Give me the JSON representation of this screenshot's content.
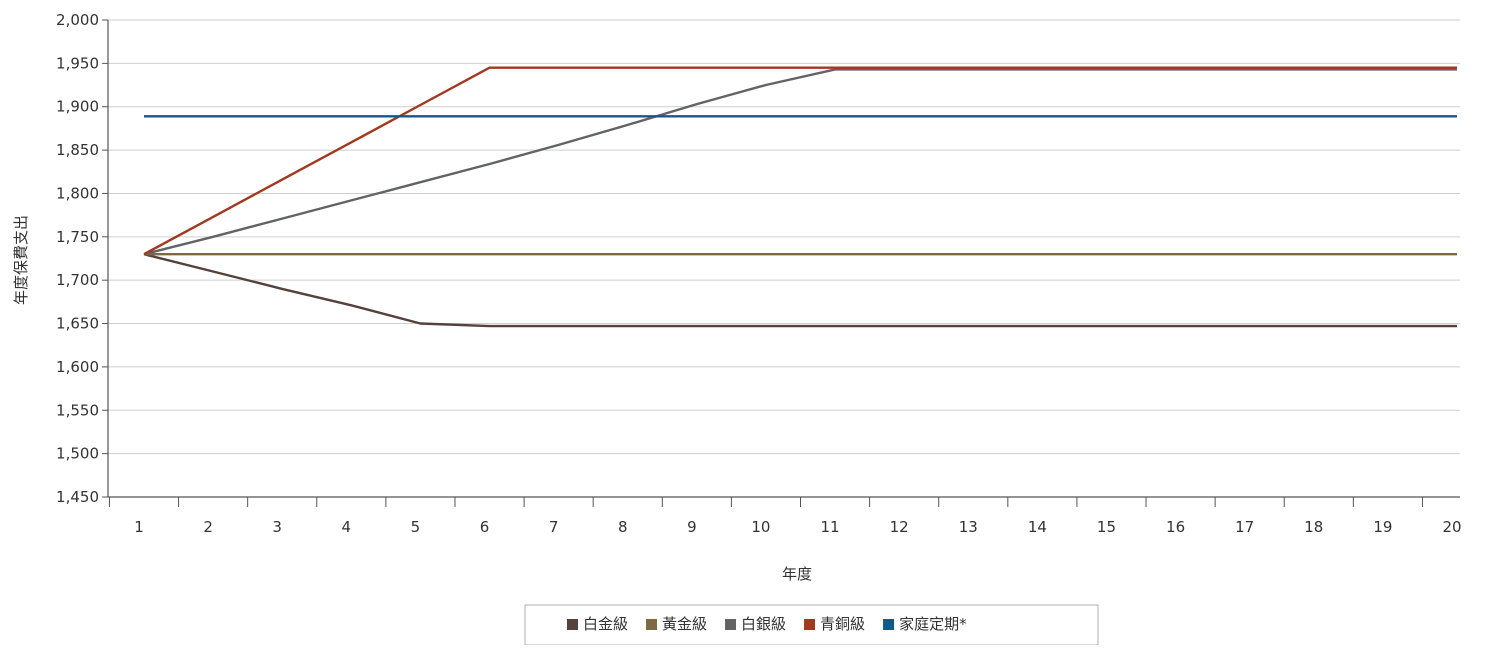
{
  "chart_data": {
    "type": "line",
    "title": "",
    "xlabel": "年度",
    "ylabel": "年度保費支出",
    "categories": [
      "1",
      "2",
      "3",
      "4",
      "5",
      "6",
      "7",
      "8",
      "9",
      "10",
      "11",
      "12",
      "13",
      "14",
      "15",
      "16",
      "17",
      "18",
      "19",
      "20"
    ],
    "ylim": [
      1450,
      2000
    ],
    "y_ticks": [
      1450,
      1500,
      1550,
      1600,
      1650,
      1700,
      1750,
      1800,
      1850,
      1900,
      1950,
      2000
    ],
    "y_tick_labels": [
      "1,450",
      "1,500",
      "1,550",
      "1,600",
      "1,650",
      "1,700",
      "1,750",
      "1,800",
      "1,850",
      "1,900",
      "1,950",
      "2,000"
    ],
    "grid": "horizontal",
    "legend_position": "bottom",
    "series": [
      {
        "name": "白金級",
        "color": "#55423c",
        "values": [
          1730,
          1710,
          1690,
          1671,
          1650,
          1647,
          1647,
          1647,
          1647,
          1647,
          1647,
          1647,
          1647,
          1647,
          1647,
          1647,
          1647,
          1647,
          1647,
          1647
        ]
      },
      {
        "name": "黃金級",
        "color": "#7d6a45",
        "values": [
          1730,
          1730,
          1730,
          1730,
          1730,
          1730,
          1730,
          1730,
          1730,
          1730,
          1730,
          1730,
          1730,
          1730,
          1730,
          1730,
          1730,
          1730,
          1730,
          1730
        ]
      },
      {
        "name": "白銀級",
        "color": "#626366",
        "values": [
          1730,
          1750,
          1771,
          1792,
          1813,
          1834,
          1856,
          1879,
          1903,
          1925,
          1943,
          1943,
          1943,
          1943,
          1943,
          1943,
          1943,
          1943,
          1943,
          1943
        ]
      },
      {
        "name": "青銅級",
        "color": "#a0391f",
        "values": [
          1730,
          1773,
          1816,
          1859,
          1902,
          1945,
          1945,
          1945,
          1945,
          1945,
          1945,
          1945,
          1945,
          1945,
          1945,
          1945,
          1945,
          1945,
          1945,
          1945
        ]
      },
      {
        "name": "家庭定期*",
        "color": "#0e5a8a",
        "values": [
          1889,
          1889,
          1889,
          1889,
          1889,
          1889,
          1889,
          1889,
          1889,
          1889,
          1889,
          1889,
          1889,
          1889,
          1889,
          1889,
          1889,
          1889,
          1889,
          1889
        ]
      }
    ]
  }
}
